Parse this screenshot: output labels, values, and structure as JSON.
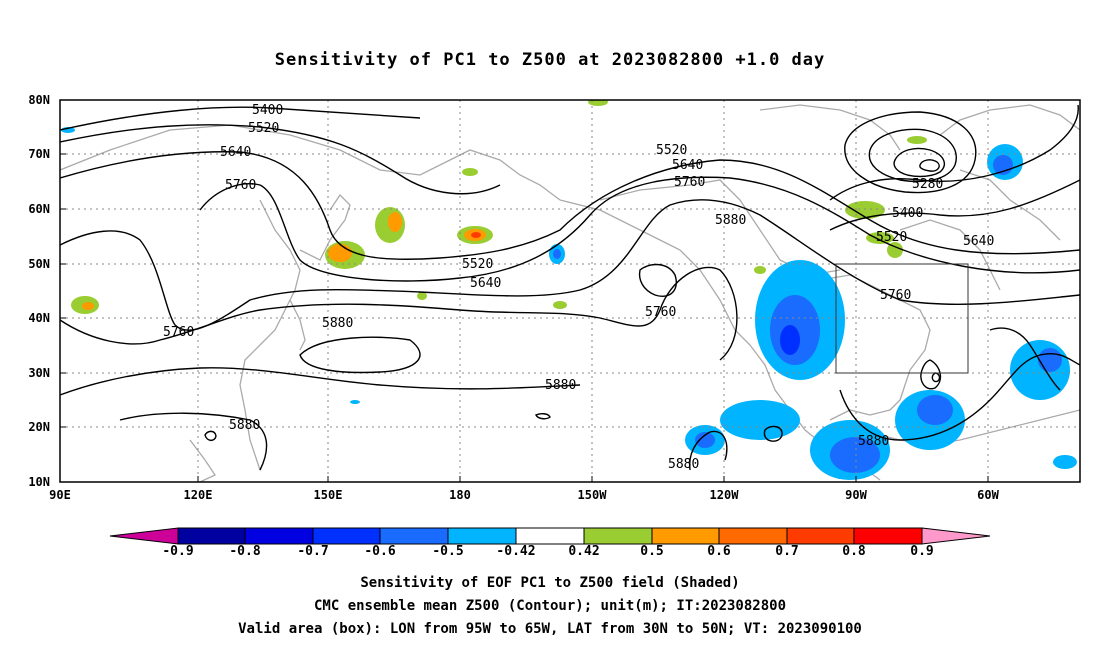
{
  "title": "Sensitivity of PC1 to Z500 at 2023082800 +1.0 day",
  "lat_labels": [
    "80N",
    "70N",
    "60N",
    "50N",
    "40N",
    "30N",
    "20N",
    "10N"
  ],
  "lon_labels": [
    "90E",
    "120E",
    "150E",
    "180",
    "150W",
    "120W",
    "90W",
    "60W"
  ],
  "contour_labels": [
    "5400",
    "5520",
    "5640",
    "5760",
    "5880",
    "5520",
    "5640",
    "5760",
    "5880",
    "5280",
    "5400",
    "5520",
    "5640",
    "5760",
    "5520",
    "5640",
    "5760",
    "5880",
    "5760",
    "5880",
    "5880",
    "5880",
    "5880"
  ],
  "colorbar": {
    "labels": [
      "-0.9",
      "-0.8",
      "-0.7",
      "-0.6",
      "-0.5",
      "-0.42",
      "0.42",
      "0.5",
      "0.6",
      "0.7",
      "0.8",
      "0.9"
    ],
    "colors": [
      "#cc0099",
      "#0000a0",
      "#0000e0",
      "#0030ff",
      "#1a6cff",
      "#00b4ff",
      "#ffffff",
      "#9acd32",
      "#ff9a00",
      "#ff6a00",
      "#ff3c00",
      "#ff0000",
      "#ff99cc"
    ]
  },
  "captions": [
    "Sensitivity of EOF PC1 to Z500 field (Shaded)",
    "CMC ensemble mean Z500 (Contour); unit(m); IT:2023082800",
    "Valid area (box): LON from 95W to 65W, LAT from 30N to 50N; VT: 2023090100"
  ]
}
